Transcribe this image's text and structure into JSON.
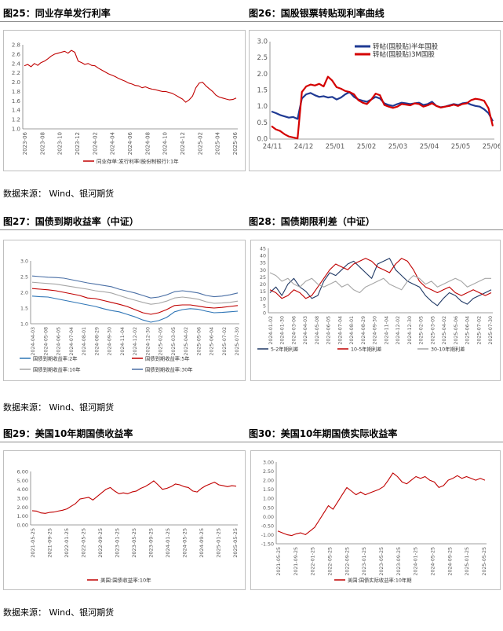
{
  "titles": {
    "f25": "图25：同业存单发行利率",
    "f26": "图26：国股银票转贴现利率曲线",
    "f27": "图27：国债到期收益率（中证）",
    "f28": "图28：国债期限利差（中证）",
    "f29": "图29：美国10年期国债收益率",
    "f30": "图30：美国10年期国债实际收益率"
  },
  "sources": [
    "数据来源：  Wind、银河期货",
    "数据来源：  Wind、银河期货",
    "数据来源：  Wind、银河期货"
  ],
  "chart_data": [
    {
      "type": "line",
      "id": "c25",
      "title": "",
      "ylim": [
        1.0,
        2.8
      ],
      "yticks": [
        "1.0",
        "1.2",
        "1.4",
        "1.6",
        "1.8",
        "2.0",
        "2.2",
        "2.4",
        "2.6",
        "2.8"
      ],
      "xticks": [
        "2023-06",
        "2023-08",
        "2023-10",
        "2023-12",
        "2024-02",
        "2024-04",
        "2024-06",
        "2024-08",
        "2024-10",
        "2024-12",
        "2025-02",
        "2025-04",
        "2025-06"
      ],
      "grid": false,
      "legend_position": "bottom",
      "series": [
        {
          "name": "同业存单:发行利率(股份制银行):1年",
          "color": "#c00000",
          "values": [
            2.35,
            2.38,
            2.33,
            2.4,
            2.36,
            2.42,
            2.45,
            2.5,
            2.56,
            2.6,
            2.62,
            2.64,
            2.66,
            2.62,
            2.68,
            2.64,
            2.45,
            2.42,
            2.38,
            2.4,
            2.36,
            2.35,
            2.3,
            2.26,
            2.22,
            2.18,
            2.15,
            2.12,
            2.08,
            2.05,
            2.02,
            1.98,
            1.96,
            1.93,
            1.92,
            1.88,
            1.9,
            1.87,
            1.85,
            1.84,
            1.82,
            1.8,
            1.8,
            1.78,
            1.76,
            1.72,
            1.68,
            1.64,
            1.57,
            1.62,
            1.7,
            1.88,
            1.98,
            2.0,
            1.92,
            1.86,
            1.8,
            1.72,
            1.68,
            1.66,
            1.64,
            1.62,
            1.63,
            1.66
          ]
        }
      ]
    },
    {
      "type": "line",
      "id": "c26",
      "title": "",
      "ylim": [
        0.0,
        3.0
      ],
      "yticks": [
        "0.0",
        "0.5",
        "1.0",
        "1.5",
        "2.0",
        "2.5",
        "3.0"
      ],
      "xticks": [
        "24/11",
        "24/12",
        "25/01",
        "25/02",
        "25/03",
        "25/04",
        "25/05",
        "25/06"
      ],
      "grid": false,
      "legend_position": "top-center",
      "series": [
        {
          "name": "转帖(国股贴)半年国股",
          "color": "#1f3a93",
          "values": [
            0.85,
            0.8,
            0.74,
            0.7,
            0.66,
            0.68,
            0.62,
            1.25,
            1.38,
            1.42,
            1.35,
            1.3,
            1.32,
            1.28,
            1.3,
            1.22,
            1.28,
            1.38,
            1.45,
            1.3,
            1.22,
            1.18,
            1.15,
            1.22,
            1.3,
            1.25,
            1.1,
            1.05,
            1.02,
            1.08,
            1.12,
            1.1,
            1.08,
            1.1,
            1.12,
            1.05,
            1.08,
            1.15,
            1.02,
            0.98,
            1.0,
            1.04,
            1.08,
            1.05,
            1.1,
            1.12,
            1.06,
            1.02,
            1.0,
            0.92,
            0.8,
            0.55
          ]
        },
        {
          "name": "转帖(国股贴)3M国股",
          "color": "#d40000",
          "values": [
            0.4,
            0.3,
            0.25,
            0.15,
            0.08,
            0.05,
            0.02,
            1.45,
            1.62,
            1.68,
            1.65,
            1.7,
            1.62,
            1.92,
            1.8,
            1.6,
            1.55,
            1.48,
            1.45,
            1.38,
            1.2,
            1.12,
            1.08,
            1.22,
            1.4,
            1.35,
            1.05,
            1.0,
            0.96,
            1.0,
            1.08,
            1.06,
            1.04,
            1.1,
            1.08,
            1.0,
            1.04,
            1.1,
            1.02,
            0.97,
            1.0,
            1.02,
            1.06,
            1.02,
            1.08,
            1.1,
            1.2,
            1.24,
            1.22,
            1.18,
            0.95,
            0.4
          ]
        }
      ]
    },
    {
      "type": "line",
      "id": "c27",
      "title": "",
      "ylim": [
        1.0,
        3.0
      ],
      "yticks": [
        "1.0",
        "1.5",
        "2.0",
        "2.5",
        "3.0"
      ],
      "xticks": [
        "2024-04-03",
        "2024-05-08",
        "2024-06-05",
        "2024-07-04",
        "2024-08-01",
        "2024-08-29",
        "2024-09-30",
        "2024-11-04",
        "2024-12-02",
        "2024-12-30",
        "2025-02-05",
        "2025-03-05",
        "2025-04-02",
        "2025-05-06",
        "2025-06-04",
        "2025-07-02",
        "2025-07-30"
      ],
      "grid": false,
      "legend_position": "bottom",
      "series": [
        {
          "name": "国债到期收益率:2年",
          "color": "#2e75b6",
          "values": [
            1.88,
            1.86,
            1.85,
            1.8,
            1.75,
            1.7,
            1.65,
            1.6,
            1.55,
            1.48,
            1.42,
            1.38,
            1.3,
            1.22,
            1.12,
            1.05,
            1.1,
            1.2,
            1.38,
            1.45,
            1.48,
            1.46,
            1.4,
            1.35,
            1.36,
            1.38,
            1.4
          ]
        },
        {
          "name": "国债到期收益率:5年",
          "color": "#c00000",
          "values": [
            2.12,
            2.1,
            2.08,
            2.05,
            2.0,
            1.95,
            1.9,
            1.82,
            1.8,
            1.74,
            1.68,
            1.62,
            1.55,
            1.45,
            1.35,
            1.3,
            1.35,
            1.45,
            1.58,
            1.6,
            1.6,
            1.56,
            1.52,
            1.5,
            1.52,
            1.55,
            1.58
          ]
        },
        {
          "name": "国债到期收益率:10年",
          "color": "#a6a6a6",
          "values": [
            2.32,
            2.3,
            2.28,
            2.26,
            2.22,
            2.18,
            2.14,
            2.1,
            2.05,
            2.02,
            1.98,
            1.9,
            1.82,
            1.75,
            1.68,
            1.62,
            1.65,
            1.72,
            1.82,
            1.85,
            1.82,
            1.78,
            1.7,
            1.65,
            1.66,
            1.68,
            1.72
          ]
        },
        {
          "name": "国债到期收益率:30年",
          "color": "#4a6fa5",
          "values": [
            2.52,
            2.5,
            2.48,
            2.47,
            2.45,
            2.4,
            2.35,
            2.3,
            2.26,
            2.22,
            2.18,
            2.1,
            2.04,
            1.98,
            1.9,
            1.82,
            1.85,
            1.92,
            2.02,
            2.05,
            2.02,
            1.98,
            1.9,
            1.86,
            1.88,
            1.92,
            1.98
          ]
        }
      ]
    },
    {
      "type": "line",
      "id": "c28",
      "title": "",
      "ylim": [
        0,
        45
      ],
      "yticks": [
        "0",
        "5",
        "10",
        "15",
        "20",
        "25",
        "30",
        "35",
        "40",
        "45"
      ],
      "xticks": [
        "2024-01-02",
        "2024-01-30",
        "2024-03-06",
        "2024-04-03",
        "2024-05-08",
        "2024-06-05",
        "2024-07-04",
        "2024-08-01",
        "2024-08-29",
        "2024-09-30",
        "2024-11-04",
        "2024-12-02",
        "2024-12-30",
        "2025-02-05",
        "2025-03-05",
        "2025-04-02",
        "2025-05-06",
        "2025-06-04",
        "2025-07-02",
        "2025-07-30"
      ],
      "grid": false,
      "legend_position": "bottom",
      "series": [
        {
          "name": "5-2年期利差",
          "color": "#1f3864",
          "values": [
            14,
            18,
            12,
            20,
            24,
            18,
            15,
            10,
            12,
            22,
            28,
            26,
            30,
            34,
            36,
            32,
            28,
            24,
            34,
            36,
            38,
            30,
            26,
            22,
            20,
            18,
            12,
            8,
            5,
            10,
            14,
            12,
            8,
            6,
            10,
            12,
            14,
            16
          ]
        },
        {
          "name": "10-5年期利差",
          "color": "#c00000",
          "values": [
            16,
            14,
            10,
            12,
            16,
            14,
            10,
            12,
            18,
            24,
            30,
            34,
            32,
            30,
            34,
            36,
            38,
            36,
            32,
            30,
            28,
            34,
            38,
            36,
            30,
            22,
            18,
            16,
            14,
            16,
            18,
            14,
            12,
            14,
            16,
            14,
            12,
            14
          ]
        },
        {
          "name": "30-10年期利差",
          "color": "#a6a6a6",
          "values": [
            28,
            26,
            22,
            24,
            20,
            18,
            22,
            24,
            20,
            18,
            20,
            22,
            18,
            20,
            16,
            14,
            18,
            20,
            22,
            24,
            20,
            18,
            16,
            22,
            26,
            24,
            20,
            22,
            18,
            20,
            22,
            24,
            22,
            18,
            20,
            22,
            24,
            24
          ]
        }
      ]
    },
    {
      "type": "line",
      "id": "c29",
      "title": "",
      "ylim": [
        0.0,
        6.0
      ],
      "yticks": [
        "0.00",
        "1.00",
        "2.00",
        "3.00",
        "4.00",
        "5.00",
        "6.00"
      ],
      "xticks": [
        "2021-05-25",
        "2021-09-25",
        "2022-01-25",
        "2022-05-25",
        "2022-09-25",
        "2023-01-25",
        "2023-05-25",
        "2023-09-25",
        "2024-01-25",
        "2024-05-25",
        "2024-09-25",
        "2025-01-25",
        "2025-05-25"
      ],
      "grid": false,
      "legend_position": "bottom",
      "series": [
        {
          "name": "美国:国债收益率:10年",
          "color": "#c00000",
          "values": [
            1.6,
            1.55,
            1.35,
            1.3,
            1.4,
            1.45,
            1.55,
            1.65,
            1.8,
            2.1,
            2.4,
            2.9,
            3.0,
            3.1,
            2.8,
            3.2,
            3.6,
            4.0,
            4.2,
            3.8,
            3.5,
            3.6,
            3.5,
            3.7,
            3.8,
            4.1,
            4.3,
            4.6,
            4.95,
            4.5,
            4.0,
            4.1,
            4.3,
            4.6,
            4.5,
            4.3,
            4.2,
            3.8,
            3.7,
            4.1,
            4.4,
            4.6,
            4.8,
            4.5,
            4.4,
            4.3,
            4.4,
            4.35
          ]
        }
      ]
    },
    {
      "type": "line",
      "id": "c30",
      "title": "",
      "ylim": [
        -1.5,
        3.0
      ],
      "yticks": [
        "-1.50",
        "-1.00",
        "-0.50",
        "0.00",
        "0.50",
        "1.00",
        "1.50",
        "2.00",
        "2.50",
        "3.00"
      ],
      "xticks": [
        "2021-05-25",
        "2021-09-25",
        "2022-01-25",
        "2022-05-25",
        "2022-09-25",
        "2023-01-25",
        "2023-05-25",
        "2023-09-25",
        "2024-01-25",
        "2024-05-25",
        "2024-09-25",
        "2025-01-25",
        "2025-05-25"
      ],
      "grid": false,
      "legend_position": "bottom",
      "series": [
        {
          "name": "美国:国债实际收益率:10年期",
          "color": "#c00000",
          "values": [
            -0.8,
            -0.9,
            -1.0,
            -1.05,
            -0.95,
            -0.9,
            -1.0,
            -0.8,
            -0.6,
            -0.2,
            0.2,
            0.6,
            0.4,
            0.8,
            1.2,
            1.6,
            1.4,
            1.2,
            1.35,
            1.2,
            1.3,
            1.4,
            1.5,
            1.65,
            2.0,
            2.4,
            2.2,
            1.9,
            1.8,
            2.0,
            2.2,
            2.1,
            2.2,
            2.0,
            1.9,
            1.6,
            1.7,
            2.0,
            2.1,
            2.25,
            2.1,
            2.2,
            2.1,
            2.0,
            2.1,
            2.0
          ]
        }
      ]
    }
  ]
}
